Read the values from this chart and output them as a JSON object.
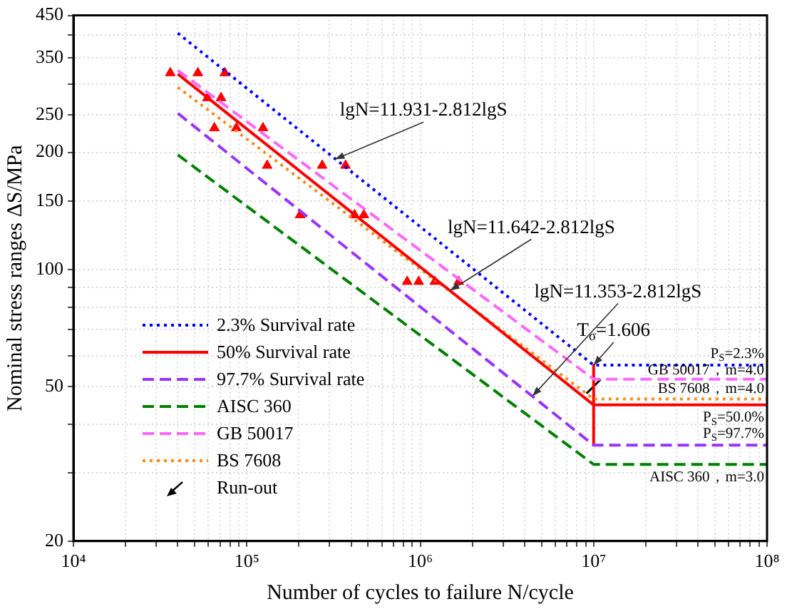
{
  "chart_data": {
    "type": "line",
    "xlabel": "Number of cycles to failure N/cycle",
    "ylabel": "Nominal stress ranges ΔS/MPa",
    "log": "xy",
    "grid": true,
    "legend": "bottom left",
    "xlim": [
      10000,
      100000000
    ],
    "ylim": [
      20,
      450
    ],
    "xticks": [
      {
        "value": 10000,
        "label": "10⁴"
      },
      {
        "value": 20000,
        "label": null
      },
      {
        "value": 30000,
        "label": null
      },
      {
        "value": 40000,
        "label": null
      },
      {
        "value": 50000,
        "label": null
      },
      {
        "value": 60000,
        "label": null
      },
      {
        "value": 70000,
        "label": null
      },
      {
        "value": 80000,
        "label": null
      },
      {
        "value": 90000,
        "label": null
      },
      {
        "value": 100000,
        "label": "10⁵"
      },
      {
        "value": 200000,
        "label": null
      },
      {
        "value": 300000,
        "label": null
      },
      {
        "value": 400000,
        "label": null
      },
      {
        "value": 500000,
        "label": null
      },
      {
        "value": 600000,
        "label": null
      },
      {
        "value": 700000,
        "label": null
      },
      {
        "value": 800000,
        "label": null
      },
      {
        "value": 900000,
        "label": null
      },
      {
        "value": 1000000,
        "label": "10⁶"
      },
      {
        "value": 2000000,
        "label": null
      },
      {
        "value": 3000000,
        "label": null
      },
      {
        "value": 4000000,
        "label": null
      },
      {
        "value": 5000000,
        "label": null
      },
      {
        "value": 6000000,
        "label": null
      },
      {
        "value": 7000000,
        "label": null
      },
      {
        "value": 8000000,
        "label": null
      },
      {
        "value": 9000000,
        "label": null
      },
      {
        "value": 10000000,
        "label": "10⁷"
      },
      {
        "value": 20000000,
        "label": null
      },
      {
        "value": 30000000,
        "label": null
      },
      {
        "value": 40000000,
        "label": null
      },
      {
        "value": 50000000,
        "label": null
      },
      {
        "value": 60000000,
        "label": null
      },
      {
        "value": 70000000,
        "label": null
      },
      {
        "value": 80000000,
        "label": null
      },
      {
        "value": 90000000,
        "label": null
      },
      {
        "value": 100000000,
        "label": "10⁸"
      }
    ],
    "yticks": [
      20,
      {
        "value": 30,
        "label": null
      },
      {
        "value": 40,
        "label": null
      },
      50,
      {
        "value": 60,
        "label": null
      },
      {
        "value": 70,
        "label": null
      },
      {
        "value": 80,
        "label": null
      },
      {
        "value": 90,
        "label": null
      },
      100,
      150,
      200,
      250,
      {
        "value": 300,
        "label": null
      },
      350,
      {
        "value": 400,
        "label": null
      },
      450
    ],
    "series": [
      {
        "name": "2.3% Survival rate",
        "color": "#0000ff",
        "line_style": "dotted",
        "x": [
          40000,
          10000000,
          100000000
        ],
        "values": [
          405,
          56.7,
          56.7
        ]
      },
      {
        "name": "50% Survival rate",
        "color": "#ff0000",
        "line_style": "solid",
        "x": [
          40000,
          10000000,
          100000000
        ],
        "values": [
          318,
          44.8,
          44.8
        ]
      },
      {
        "name": "97.7% Survival rate",
        "color": "#9933ff",
        "line_style": "dashed",
        "x": [
          40000,
          10000000,
          100000000
        ],
        "values": [
          252,
          35.3,
          35.3
        ]
      },
      {
        "name": "AISC 360",
        "color": "#008000",
        "line_style": "dashed",
        "x": [
          40000,
          10000000,
          100000000
        ],
        "values": [
          197,
          31.5,
          31.5
        ]
      },
      {
        "name": "GB 50017",
        "color": "#ff66ff",
        "line_style": "dashed",
        "x": [
          40000,
          10000000,
          100000000
        ],
        "values": [
          325,
          52.2,
          52.2
        ]
      },
      {
        "name": "BS 7608",
        "color": "#ff8c1a",
        "line_style": "dotted",
        "x": [
          40000,
          10000000,
          100000000
        ],
        "values": [
          294,
          46.4,
          46.4
        ]
      },
      {
        "color": "#ff0000",
        "line_style": "solid",
        "x": [
          10000000,
          10000000
        ],
        "values": [
          56.7,
          35.3
        ]
      },
      {
        "type": "scatter",
        "marker": "triangle",
        "color": "#ff0000",
        "x": [
          36200,
          52200,
          74700,
          59300,
          71000,
          65000,
          87000,
          124000,
          131000,
          272000,
          371000,
          203000,
          418000,
          473000,
          841000,
          980000,
          1213000,
          1667000
        ],
        "values": [
          320,
          320,
          320,
          276,
          276,
          231,
          231,
          231,
          185,
          185,
          185,
          138,
          138,
          138,
          93,
          93,
          93,
          93
        ]
      },
      {
        "name": "Run-out",
        "type": "scatter",
        "color": "#000000",
        "x": [
          10000000
        ],
        "values": [
          50
        ]
      }
    ],
    "annotations": [
      {
        "text": "lgN=11.931-2.812lgS",
        "x": 323000,
        "y": 192
      },
      {
        "text": "lgN=11.642-2.812lgS",
        "x": 1486000,
        "y": 88.2
      },
      {
        "text": "lgN=11.353-2.812lgS",
        "x": 4440000,
        "y": 47.2
      },
      {
        "text": "T$_{σ}$=1.606",
        "x": 10000000,
        "y": 56.7
      },
      {
        "text": "P$_{S}$=2.3%",
        "x": 100000000,
        "y": 56.7
      },
      {
        "text": "GB 50017，m=4.0",
        "x": 100000000,
        "y": 52.2
      },
      {
        "text": "BS 7608，m=4.0",
        "x": 100000000,
        "y": 46.4
      },
      {
        "text": "P$_{S}$=50.0%",
        "x": 100000000,
        "y": 44.8
      },
      {
        "text": "P$_{S}$=97.7%",
        "x": 100000000,
        "y": 35.3
      },
      {
        "text": "AISC 360，m=3.0",
        "x": 100000000,
        "y": 31.5
      }
    ]
  }
}
